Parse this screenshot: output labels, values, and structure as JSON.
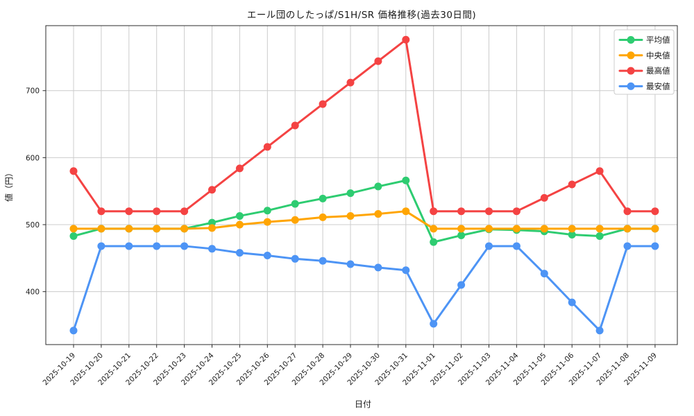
{
  "chart_data": {
    "type": "line",
    "title": "エール団のしたっぱ/S1H/SR 価格推移(過去30日間)",
    "xlabel": "日付",
    "ylabel": "値（円）",
    "x": [
      "2025-10-19",
      "2025-10-20",
      "2025-10-21",
      "2025-10-22",
      "2025-10-23",
      "2025-10-24",
      "2025-10-25",
      "2025-10-26",
      "2025-10-27",
      "2025-10-28",
      "2025-10-29",
      "2025-10-30",
      "2025-10-31",
      "2025-11-01",
      "2025-11-02",
      "2025-11-03",
      "2025-11-04",
      "2025-11-05",
      "2025-11-06",
      "2025-11-07",
      "2025-11-08",
      "2025-11-09"
    ],
    "series": [
      {
        "name": "平均値",
        "color": "#2ecc71",
        "values": [
          483,
          494,
          494,
          494,
          494,
          503,
          513,
          521,
          531,
          539,
          547,
          557,
          566,
          474,
          484,
          493,
          492,
          490,
          485,
          483,
          494,
          494
        ]
      },
      {
        "name": "中央値",
        "color": "#ffa502",
        "values": [
          494,
          494,
          494,
          494,
          494,
          495,
          500,
          504,
          507,
          511,
          513,
          516,
          520,
          494,
          494,
          494,
          494,
          494,
          494,
          494,
          494,
          494
        ]
      },
      {
        "name": "最高値",
        "color": "#f44343",
        "values": [
          580,
          520,
          520,
          520,
          520,
          552,
          584,
          616,
          648,
          680,
          712,
          744,
          776,
          520,
          520,
          520,
          520,
          540,
          560,
          580,
          520,
          520
        ]
      },
      {
        "name": "最安値",
        "color": "#4d94f5",
        "values": [
          342,
          468,
          468,
          468,
          468,
          464,
          458,
          454,
          449,
          446,
          441,
          436,
          432,
          352,
          410,
          468,
          468,
          427,
          384,
          342,
          468,
          468
        ]
      }
    ],
    "yticks": [
      400,
      500,
      600,
      700
    ],
    "ylim": [
      321,
      797
    ],
    "grid": true,
    "grid_color": "#cccccc",
    "spine_color": "#2b2b2b",
    "legend_position": "upper right",
    "background": "#ffffff"
  }
}
